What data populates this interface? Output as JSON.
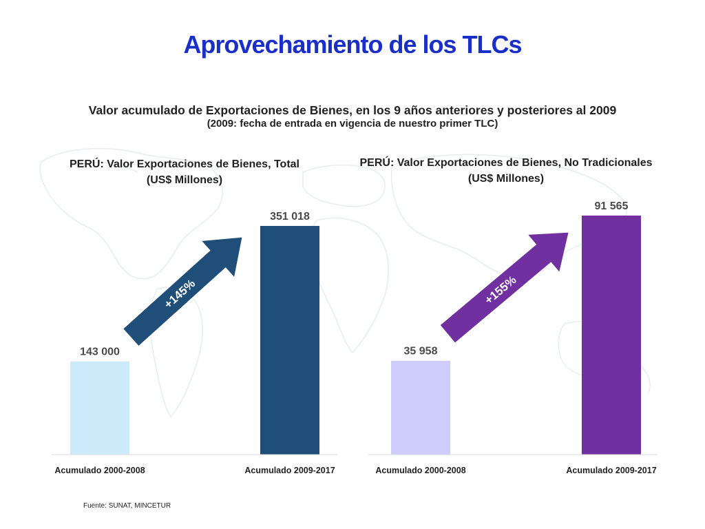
{
  "slide": {
    "title": "Aprovechamiento de los TLCs",
    "subtitle_line1": "Valor acumulado de Exportaciones de Bienes, en los 9 años anteriores y posteriores al 2009",
    "subtitle_line2": "(2009: fecha de entrada en vigencia de nuestro primer TLC)",
    "source": "Fuente: SUNAT, MINCETUR"
  },
  "chart_data": [
    {
      "type": "bar",
      "title": "PERÚ: Valor Exportaciones de Bienes, Total",
      "subtitle": "(US$ Millones)",
      "categories": [
        "Acumulado 2000-2008",
        "Acumulado 2009-2017"
      ],
      "values": [
        143000,
        351018
      ],
      "value_labels": [
        "143 000",
        "351 018"
      ],
      "colors": [
        "#cdeafa",
        "#1f4e79"
      ],
      "growth_label": "+145%",
      "growth_color": "#1f4e79",
      "legend": "none",
      "grid": false
    },
    {
      "type": "bar",
      "title": "PERÚ: Valor Exportaciones de Bienes, No Tradicionales",
      "subtitle": "(US$ Millones)",
      "categories": [
        "Acumulado 2000-2008",
        "Acumulado 2009-2017"
      ],
      "values": [
        35958,
        91565
      ],
      "value_labels": [
        "35 958",
        "91 565"
      ],
      "colors": [
        "#cfcdfb",
        "#7030a0"
      ],
      "growth_label": "+155%",
      "growth_color": "#7030a0",
      "legend": "none",
      "grid": false
    }
  ]
}
